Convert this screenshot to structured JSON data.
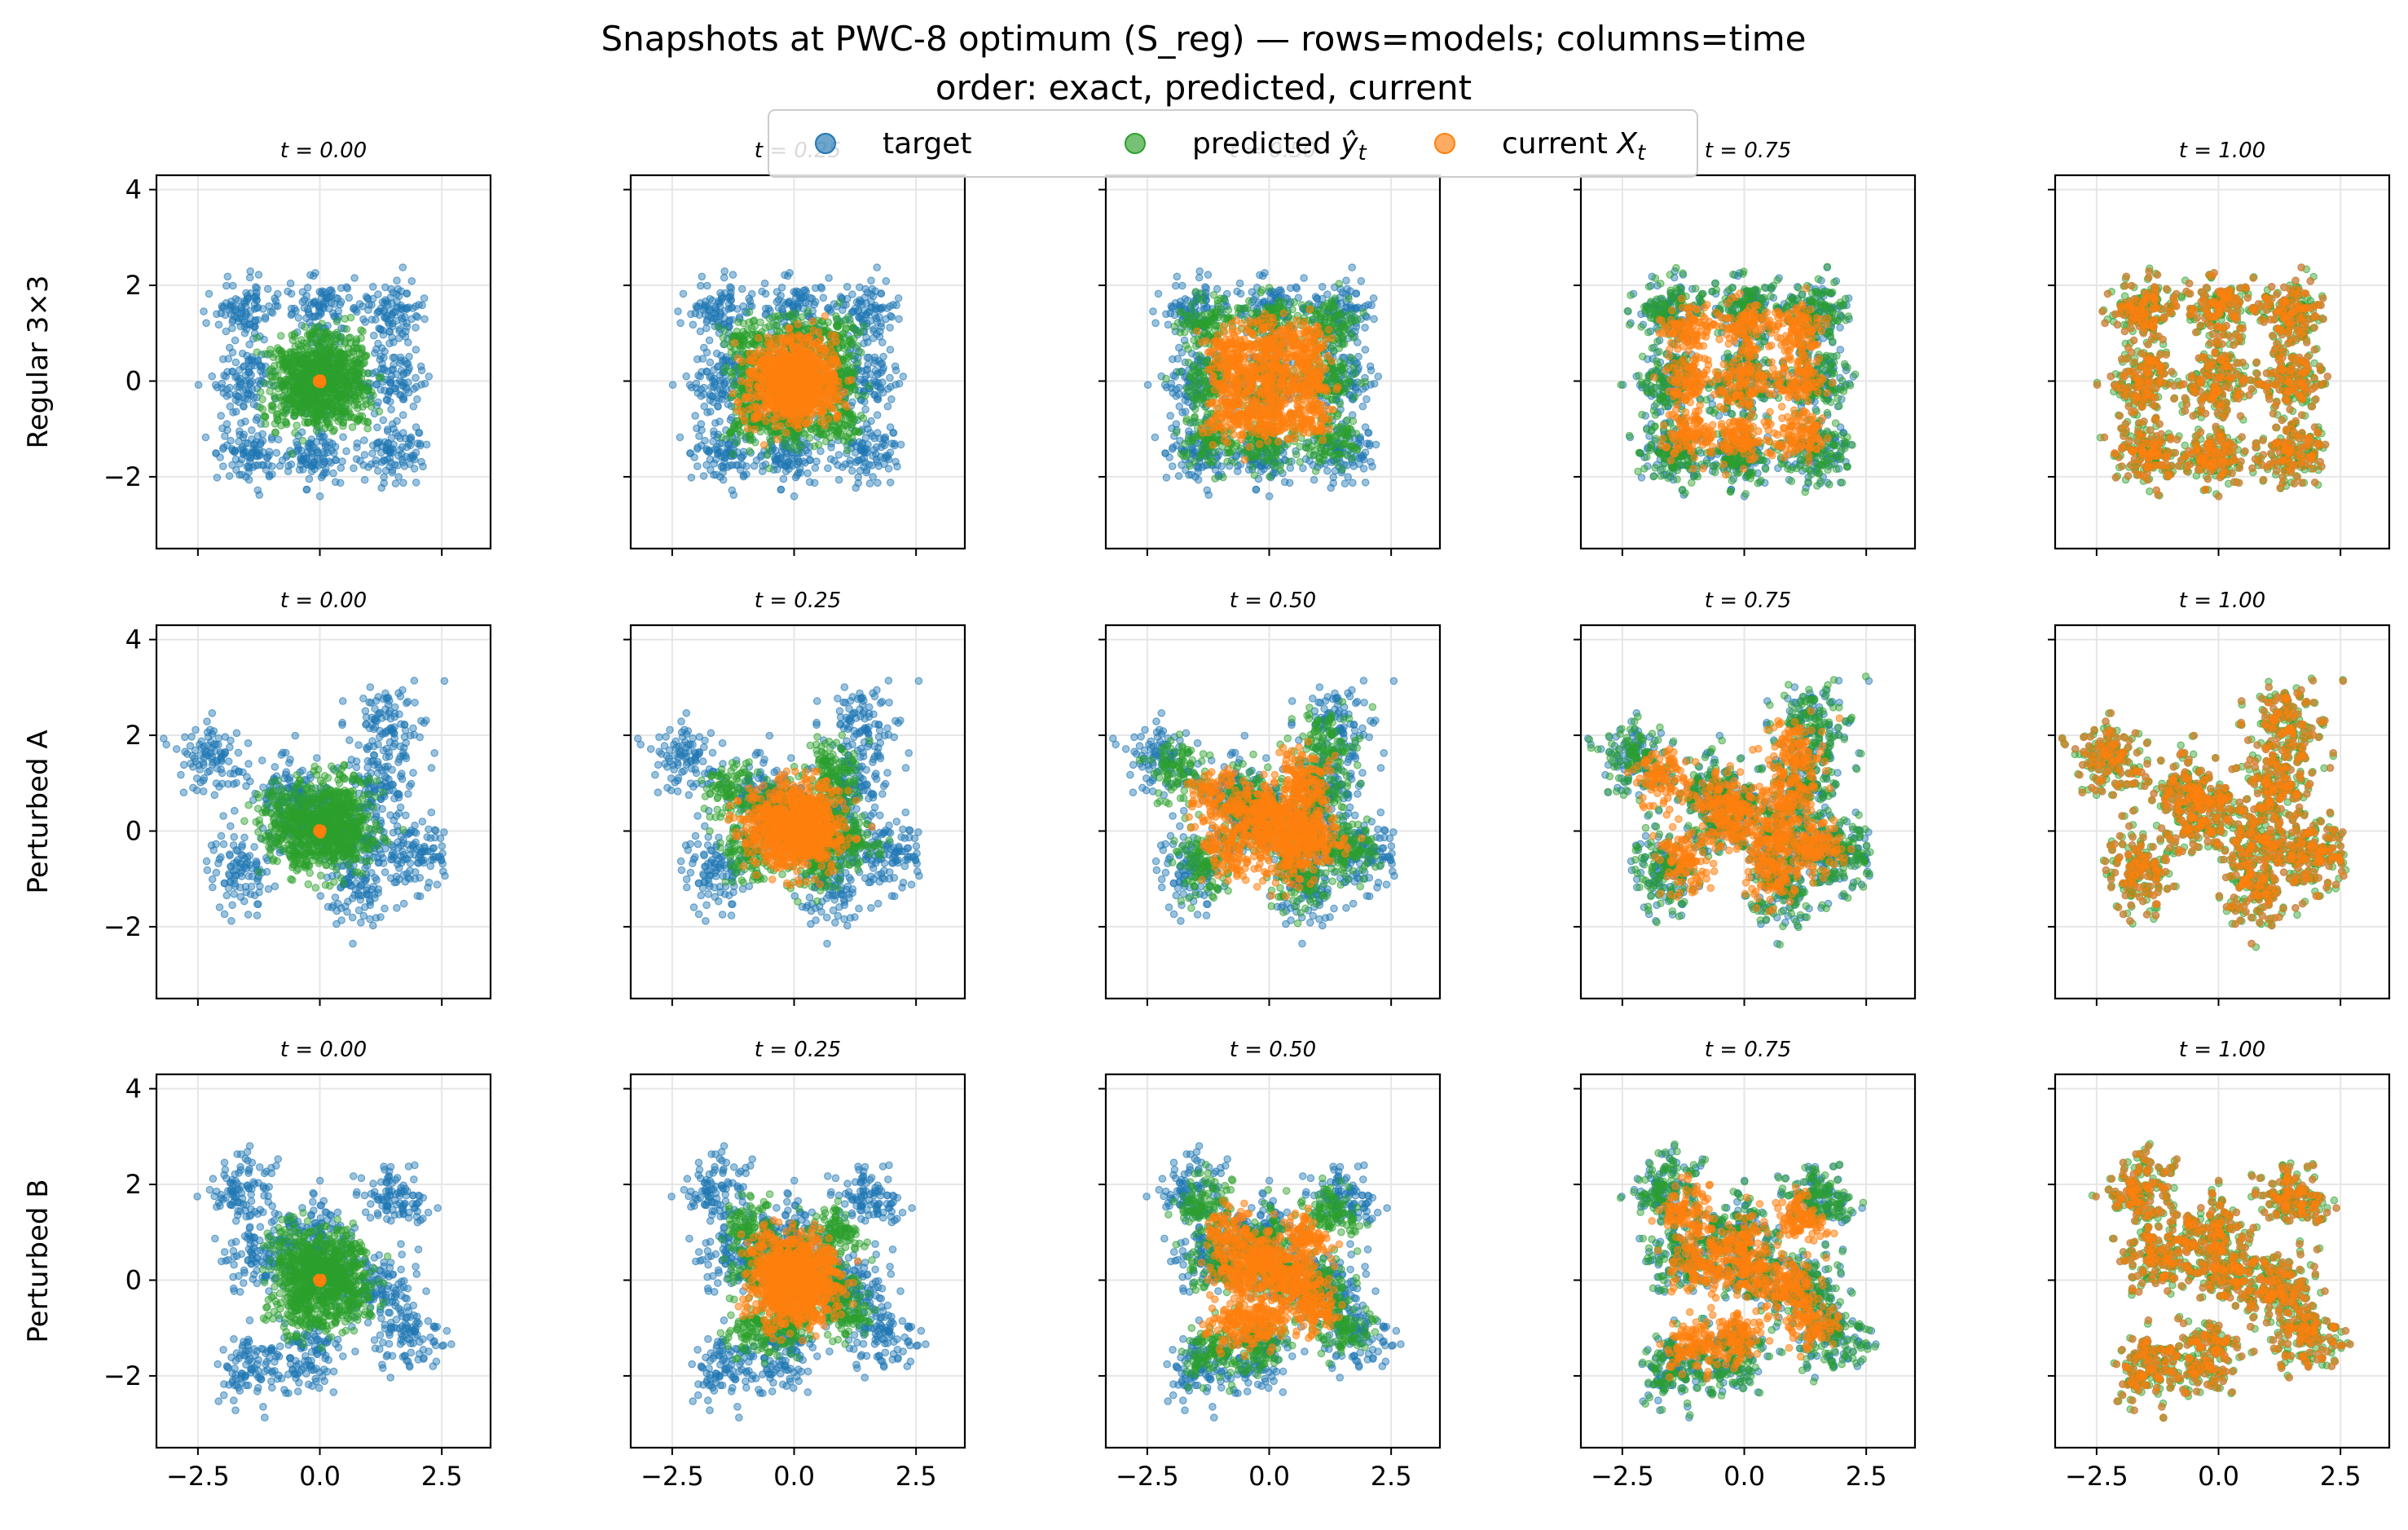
{
  "chart_data": {
    "type": "scatter",
    "title_line1": "Snapshots at PWC-8 optimum (S_reg) — rows=models; columns=time",
    "title_line2": "order: exact, predicted, current",
    "row_labels": [
      "Regular 3×3",
      "Perturbed A",
      "Perturbed B"
    ],
    "columns": [
      {
        "t": "0.00",
        "label": "t = 0.00"
      },
      {
        "t": "0.25",
        "label": "t = 0.25"
      },
      {
        "t": "0.50",
        "label": "t = 0.50"
      },
      {
        "t": "0.75",
        "label": "t = 0.75"
      },
      {
        "t": "1.00",
        "label": "t = 1.00"
      }
    ],
    "xlim": [
      -3.35,
      3.5
    ],
    "ylim": [
      -3.5,
      4.3
    ],
    "xticks": [
      -2.5,
      0.0,
      2.5
    ],
    "xtick_labels": [
      "−2.5",
      "0.0",
      "2.5"
    ],
    "yticks": [
      -2,
      0,
      2,
      4
    ],
    "ytick_labels": [
      "−2",
      "0",
      "2",
      "4"
    ],
    "grid": true,
    "legend": {
      "placement": "top-center",
      "entries": [
        {
          "name": "target",
          "color": "#1f77b4"
        },
        {
          "name": "predicted ŷ_t",
          "label_text": "predicted ",
          "math": "ŷ",
          "sub": "t",
          "color": "#2ca02c"
        },
        {
          "name": "current X_t",
          "label_text": "current ",
          "math": "X",
          "sub": "t",
          "color": "#ff7f0e"
        }
      ]
    },
    "series": [
      {
        "name": "target",
        "color": "#1f77b4"
      },
      {
        "name": "predicted",
        "color": "#2ca02c"
      },
      {
        "name": "current",
        "color": "#ff7f0e"
      }
    ],
    "clusters": [
      {
        "model": "Regular 3×3",
        "centers": [
          [
            -1.5,
            -1.5
          ],
          [
            -1.5,
            0
          ],
          [
            -1.5,
            1.5
          ],
          [
            0,
            -1.5
          ],
          [
            0,
            0
          ],
          [
            0,
            1.5
          ],
          [
            1.5,
            -1.5
          ],
          [
            1.5,
            0
          ],
          [
            1.5,
            1.5
          ]
        ],
        "spread": 0.33
      },
      {
        "model": "Perturbed A",
        "centers": [
          [
            -2.2,
            1.5
          ],
          [
            -1.6,
            -0.8
          ],
          [
            -0.5,
            0.8
          ],
          [
            -0.3,
            0.3
          ],
          [
            0.8,
            -0.2
          ],
          [
            0.8,
            -1.2
          ],
          [
            1.2,
            1.0
          ],
          [
            1.5,
            2.2
          ],
          [
            2.0,
            -0.5
          ]
        ],
        "spread": 0.38
      },
      {
        "model": "Perturbed B",
        "centers": [
          [
            -1.6,
            1.8
          ],
          [
            -1.2,
            0.5
          ],
          [
            -1.4,
            -1.8
          ],
          [
            -0.2,
            -1.6
          ],
          [
            -0.2,
            1.0
          ],
          [
            0.2,
            0.2
          ],
          [
            1.3,
            -0.1
          ],
          [
            1.5,
            1.7
          ],
          [
            1.8,
            -1.1
          ]
        ],
        "spread": 0.36
      }
    ],
    "points_per_series": 900,
    "source_std": 0.42
  }
}
